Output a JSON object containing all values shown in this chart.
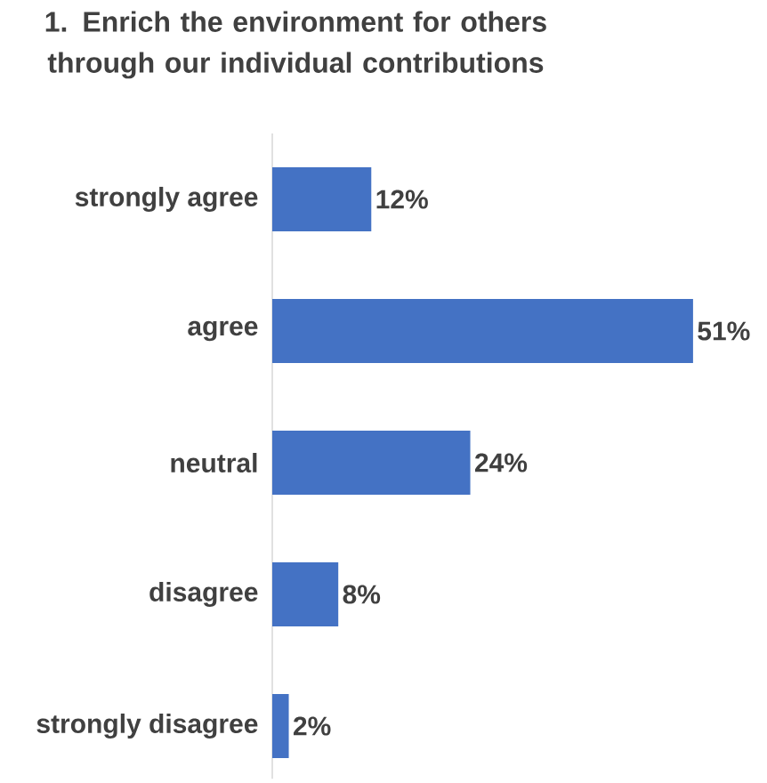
{
  "chart_data": {
    "type": "bar",
    "orientation": "horizontal",
    "title": "1.  Enrich the environment for others through our individual contributions",
    "categories": [
      "strongly agree",
      "agree",
      "neutral",
      "disagree",
      "strongly disagree"
    ],
    "values": [
      12,
      51,
      24,
      8,
      2
    ],
    "value_labels": [
      "12%",
      "51%",
      "24%",
      "8%",
      "2%"
    ],
    "color": "#4472c4",
    "grid": false
  }
}
